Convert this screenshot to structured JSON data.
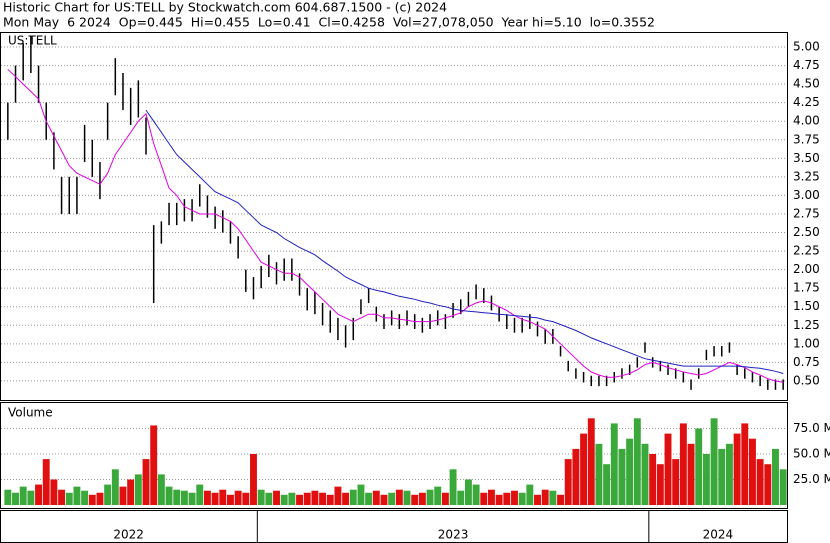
{
  "chart_data": {
    "type": "stock",
    "title": "Historic Chart for US:TELL by Stockwatch.com 604.687.1500 - (c) 2024",
    "subtitle": "Mon May  6 2024  Op=0.445  Hi=0.455  Lo=0.41  Cl=0.4258  Vol=27,078,050  Year hi=5.10  lo=0.3552",
    "symbol": "US:TELL",
    "volume_label": "Volume",
    "high": [
      4.25,
      4.75,
      5.05,
      5.15,
      4.75,
      4.25,
      3.85,
      3.25,
      3.25,
      3.25,
      3.95,
      3.75,
      3.45,
      4.25,
      4.85,
      4.65,
      4.45,
      4.55,
      4.05,
      2.6,
      2.65,
      2.9,
      2.9,
      2.95,
      2.95,
      3.15,
      3.0,
      2.85,
      2.8,
      2.65,
      2.45,
      2.0,
      1.9,
      2.05,
      2.2,
      2.1,
      2.15,
      2.15,
      1.95,
      1.75,
      1.7,
      1.55,
      1.45,
      1.35,
      1.25,
      1.35,
      1.6,
      1.75,
      1.5,
      1.4,
      1.45,
      1.4,
      1.45,
      1.4,
      1.35,
      1.4,
      1.45,
      1.4,
      1.55,
      1.6,
      1.7,
      1.8,
      1.75,
      1.65,
      1.5,
      1.4,
      1.35,
      1.35,
      1.4,
      1.3,
      1.2,
      1.2,
      0.97,
      0.77,
      0.67,
      0.62,
      0.57,
      0.57,
      0.57,
      0.62,
      0.67,
      0.72,
      0.82,
      1.02,
      0.82,
      0.77,
      0.72,
      0.67,
      0.62,
      0.52,
      0.67,
      0.92,
      0.97,
      0.97,
      1.02,
      0.72,
      0.67,
      0.62,
      0.57,
      0.52,
      0.52,
      0.52
    ],
    "low": [
      3.75,
      4.25,
      4.55,
      4.65,
      4.25,
      3.75,
      3.35,
      2.75,
      2.75,
      2.75,
      3.45,
      3.25,
      2.95,
      3.75,
      4.35,
      4.15,
      3.95,
      4.05,
      3.55,
      1.55,
      2.35,
      2.6,
      2.6,
      2.65,
      2.65,
      2.85,
      2.7,
      2.55,
      2.5,
      2.35,
      2.15,
      1.7,
      1.6,
      1.75,
      1.9,
      1.8,
      1.85,
      1.85,
      1.65,
      1.45,
      1.4,
      1.25,
      1.15,
      1.05,
      0.95,
      1.05,
      1.4,
      1.55,
      1.3,
      1.2,
      1.25,
      1.2,
      1.25,
      1.2,
      1.15,
      1.2,
      1.25,
      1.2,
      1.35,
      1.4,
      1.5,
      1.6,
      1.55,
      1.45,
      1.3,
      1.2,
      1.15,
      1.15,
      1.2,
      1.1,
      1.0,
      1.0,
      0.83,
      0.63,
      0.53,
      0.48,
      0.43,
      0.43,
      0.43,
      0.48,
      0.53,
      0.58,
      0.68,
      0.88,
      0.68,
      0.63,
      0.58,
      0.53,
      0.48,
      0.38,
      0.53,
      0.78,
      0.83,
      0.83,
      0.88,
      0.58,
      0.53,
      0.48,
      0.43,
      0.38,
      0.38,
      0.38
    ],
    "ma_short": [
      4.7,
      4.6,
      4.5,
      4.4,
      4.3,
      4.0,
      3.8,
      3.6,
      3.4,
      3.3,
      3.25,
      3.2,
      3.15,
      3.3,
      3.55,
      3.7,
      3.85,
      4.0,
      4.1,
      3.7,
      3.4,
      3.1,
      3.0,
      2.85,
      2.8,
      2.75,
      2.75,
      2.75,
      2.7,
      2.65,
      2.55,
      2.4,
      2.25,
      2.1,
      2.05,
      2.0,
      1.95,
      1.95,
      1.9,
      1.8,
      1.7,
      1.6,
      1.5,
      1.4,
      1.35,
      1.3,
      1.35,
      1.4,
      1.4,
      1.35,
      1.35,
      1.33,
      1.32,
      1.3,
      1.3,
      1.3,
      1.32,
      1.35,
      1.38,
      1.42,
      1.5,
      1.55,
      1.58,
      1.55,
      1.5,
      1.45,
      1.38,
      1.33,
      1.3,
      1.25,
      1.2,
      1.1,
      1.0,
      0.9,
      0.8,
      0.7,
      0.62,
      0.58,
      0.55,
      0.55,
      0.57,
      0.6,
      0.65,
      0.72,
      0.75,
      0.72,
      0.68,
      0.65,
      0.62,
      0.6,
      0.58,
      0.6,
      0.65,
      0.7,
      0.75,
      0.72,
      0.68,
      0.62,
      0.58,
      0.53,
      0.5,
      0.48
    ],
    "ma_long": [
      null,
      null,
      null,
      null,
      null,
      null,
      null,
      null,
      null,
      null,
      null,
      null,
      null,
      null,
      null,
      null,
      null,
      null,
      4.15,
      4.0,
      3.85,
      3.7,
      3.55,
      3.45,
      3.35,
      3.25,
      3.15,
      3.05,
      3.0,
      2.95,
      2.9,
      2.8,
      2.7,
      2.6,
      2.55,
      2.5,
      2.42,
      2.36,
      2.3,
      2.25,
      2.2,
      2.12,
      2.05,
      1.98,
      1.9,
      1.85,
      1.8,
      1.75,
      1.72,
      1.7,
      1.67,
      1.64,
      1.62,
      1.6,
      1.57,
      1.55,
      1.52,
      1.5,
      1.47,
      1.45,
      1.44,
      1.43,
      1.42,
      1.41,
      1.4,
      1.39,
      1.38,
      1.37,
      1.36,
      1.35,
      1.32,
      1.3,
      1.26,
      1.22,
      1.18,
      1.13,
      1.08,
      1.04,
      1.0,
      0.96,
      0.92,
      0.88,
      0.84,
      0.8,
      0.78,
      0.76,
      0.74,
      0.72,
      0.7,
      0.7,
      0.7,
      0.7,
      0.7,
      0.7,
      0.7,
      0.7,
      0.69,
      0.68,
      0.67,
      0.65,
      0.63,
      0.6
    ],
    "volume": [
      15,
      12,
      18,
      14,
      20,
      45,
      25,
      15,
      12,
      18,
      14,
      10,
      12,
      20,
      35,
      18,
      25,
      30,
      45,
      78,
      30,
      18,
      15,
      14,
      12,
      20,
      14,
      12,
      15,
      10,
      14,
      12,
      50,
      15,
      12,
      14,
      10,
      12,
      10,
      12,
      14,
      12,
      10,
      18,
      12,
      15,
      20,
      12,
      14,
      10,
      12,
      15,
      14,
      10,
      12,
      15,
      18,
      12,
      35,
      14,
      25,
      20,
      12,
      15,
      10,
      12,
      14,
      12,
      20,
      10,
      15,
      14,
      10,
      45,
      55,
      70,
      85,
      60,
      40,
      80,
      55,
      65,
      85,
      60,
      50,
      40,
      70,
      45,
      80,
      60,
      75,
      50,
      85,
      55,
      60,
      70,
      80,
      65,
      45,
      40,
      55,
      35
    ],
    "bar_color": "#000000",
    "ma_short_color": "#e000e0",
    "ma_long_color": "#2020c0",
    "up_color": "#3aa83a",
    "down_color": "#e01010",
    "grid": true,
    "ylim": [
      0.27,
      5.135
    ],
    "yticks": [
      {
        "value": 0.5,
        "label": "0.50"
      },
      {
        "value": 0.75,
        "label": "0.75"
      },
      {
        "value": 1.0,
        "label": "1.00"
      },
      {
        "value": 1.25,
        "label": "1.25"
      },
      {
        "value": 1.5,
        "label": "1.50"
      },
      {
        "value": 1.75,
        "label": "1.75"
      },
      {
        "value": 2.0,
        "label": "2.00"
      },
      {
        "value": 2.25,
        "label": "2.25"
      },
      {
        "value": 2.5,
        "label": "2.50"
      },
      {
        "value": 2.75,
        "label": "2.75"
      },
      {
        "value": 3.0,
        "label": "3.00"
      },
      {
        "value": 3.25,
        "label": "3.25"
      },
      {
        "value": 3.5,
        "label": "3.50"
      },
      {
        "value": 3.75,
        "label": "3.75"
      },
      {
        "value": 4.0,
        "label": "4.00"
      },
      {
        "value": 4.25,
        "label": "4.25"
      },
      {
        "value": 4.5,
        "label": "4.50"
      },
      {
        "value": 4.75,
        "label": "4.75"
      },
      {
        "value": 5.0,
        "label": "5.00"
      }
    ],
    "y2lim": [
      0,
      100
    ],
    "y2ticks": [
      {
        "value": 25,
        "label": "25.0 M"
      },
      {
        "value": 50,
        "label": "50.0 M"
      },
      {
        "value": 75,
        "label": "75.0 M"
      }
    ],
    "year_labels": [
      "2022",
      "2023",
      "2024"
    ],
    "year_breaks": [
      33,
      84
    ]
  }
}
